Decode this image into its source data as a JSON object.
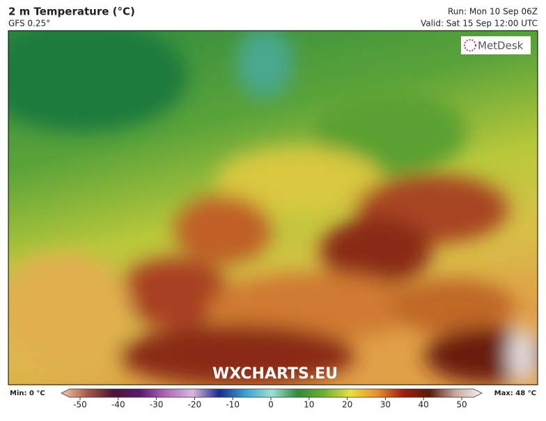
{
  "header": {
    "title": "2 m Temperature (°C)",
    "subtitle": "GFS 0.25°",
    "run": "Run: Mon 10 Sep 06Z",
    "valid": "Valid: Sat 15 Sep 12:00 UTC"
  },
  "logo": "MetDesk",
  "watermark": "WXCHARTS.EU",
  "legend": {
    "min_label": "Min: 0 °C",
    "max_label": "Max: 48 °C",
    "ticks": [
      -50,
      -40,
      -30,
      -20,
      -10,
      0,
      10,
      20,
      30,
      40,
      50
    ],
    "colors": [
      "#f6c9a8",
      "#a4594a",
      "#4a1436",
      "#5a1a70",
      "#b06ab8",
      "#d8b8e0",
      "#1a2a8a",
      "#3aa0d0",
      "#9ee0d0",
      "#2f8a3a",
      "#6fb030",
      "#e8e040",
      "#e89030",
      "#a02010",
      "#5a1a0a",
      "#c8a8a0",
      "#f4f4f4"
    ]
  }
}
